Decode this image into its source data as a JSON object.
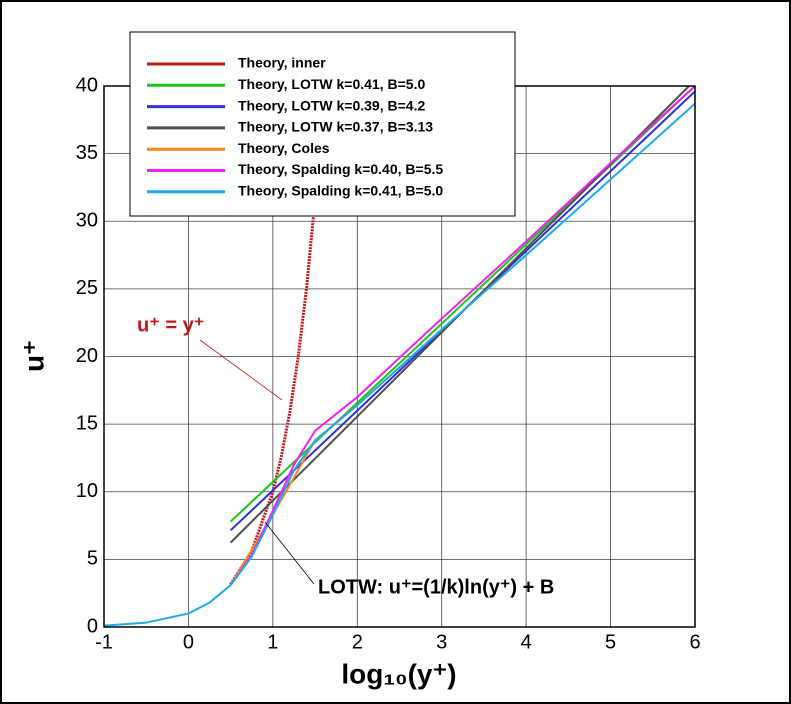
{
  "chart_data": {
    "type": "line",
    "xlabel": "log₁₀(y⁺)",
    "ylabel": "u⁺",
    "xlim": [
      -1,
      6
    ],
    "xticks": [
      -1,
      0,
      1,
      2,
      3,
      4,
      5,
      6
    ],
    "ylim": [
      0,
      40
    ],
    "yticks": [
      0,
      5,
      10,
      15,
      20,
      25,
      30,
      35,
      40
    ],
    "grid": true,
    "legend": "top-left",
    "annotations": [
      "u⁺ = y⁺",
      "LOTW: u⁺=(1/k)ln(y⁺) + B"
    ],
    "series": [
      {
        "name": "Theory, inner",
        "color": "#c0181b",
        "x": [
          0.5,
          0.75,
          1.0,
          1.1,
          1.2,
          1.3,
          1.4,
          1.5
        ],
        "values": [
          3.16,
          5.62,
          10.0,
          12.6,
          15.85,
          19.95,
          25.12,
          31.62
        ]
      },
      {
        "name": "Theory, LOTW k=0.41, B=5.0",
        "color": "#18c818",
        "x": [
          0.5,
          6
        ],
        "values": [
          7.8,
          40
        ]
      },
      {
        "name": "Theory, LOTW k=0.39, B=4.2",
        "color": "#3030d8",
        "x": [
          0.5,
          6
        ],
        "values": [
          7.15,
          39.6
        ]
      },
      {
        "name": "Theory, LOTW k=0.37, B=3.13",
        "color": "#505050",
        "x": [
          0.5,
          5.93
        ],
        "values": [
          6.24,
          40
        ]
      },
      {
        "name": "Theory, Coles",
        "color": "#f08a20",
        "x": [
          0.5,
          1.0,
          1.5,
          2.0,
          2.5,
          3.0
        ],
        "values": [
          3.1,
          8.3,
          13.8,
          16.4,
          19.2,
          22.0
        ]
      },
      {
        "name": "Theory, Spalding k=0.40, B=5.5",
        "color": "#f020f0",
        "x": [
          0.5,
          0.75,
          1.0,
          1.25,
          1.5,
          2.0,
          3.0,
          4.0,
          5.0,
          6.0
        ],
        "values": [
          3.1,
          5.3,
          8.6,
          12.0,
          14.5,
          17.0,
          22.8,
          28.5,
          34.3,
          40.0
        ]
      },
      {
        "name": "Theory, Spalding k=0.41, B=5.0",
        "color": "#20a8f0",
        "x": [
          -1,
          -0.5,
          0,
          0.25,
          0.5,
          0.75,
          1.0,
          1.25,
          1.5,
          2.0,
          3.0,
          4.0,
          5.0,
          6.0
        ],
        "values": [
          0.1,
          0.32,
          1.0,
          1.8,
          3.1,
          5.2,
          8.3,
          11.6,
          13.8,
          16.4,
          22.0,
          27.5,
          33.1,
          38.7
        ]
      }
    ]
  }
}
